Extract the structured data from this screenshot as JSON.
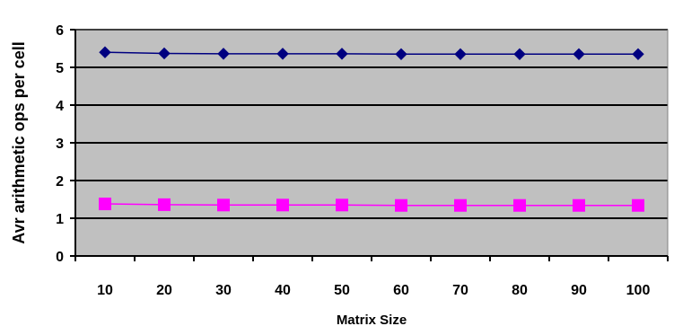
{
  "chart_data": {
    "type": "line",
    "xlabel": "Matrix Size",
    "ylabel": "Avr arithmetic ops per cell",
    "categories": [
      "10",
      "20",
      "30",
      "40",
      "50",
      "60",
      "70",
      "80",
      "90",
      "100"
    ],
    "ylim": [
      0,
      6
    ],
    "yticks": [
      "0",
      "1",
      "2",
      "3",
      "4",
      "5",
      "6"
    ],
    "grid": true,
    "plot_background": "#c0c0c0",
    "series": [
      {
        "color": "#000080",
        "marker": "diamond",
        "values": [
          5.4,
          5.37,
          5.36,
          5.36,
          5.36,
          5.35,
          5.35,
          5.35,
          5.35,
          5.35
        ]
      },
      {
        "color": "#ff00ff",
        "marker": "square",
        "values": [
          1.38,
          1.36,
          1.35,
          1.35,
          1.35,
          1.34,
          1.34,
          1.34,
          1.34,
          1.34
        ]
      }
    ]
  }
}
